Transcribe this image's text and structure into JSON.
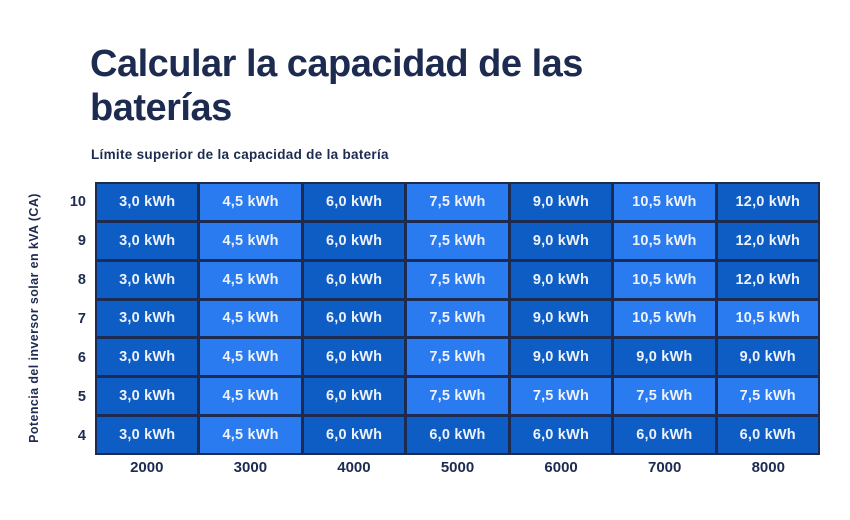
{
  "header": {
    "title_line1": "Calcular la capacidad de las",
    "title_line2": "baterías",
    "subtitle": "Límite superior de la capacidad de la batería"
  },
  "colors": {
    "background": "#ffffff",
    "navy": "#1d2b50",
    "cell_dark": "#0e5dc4",
    "cell_light": "#2a7af0",
    "cell_text": "#edf2fb"
  },
  "chart_data": {
    "type": "heatmap",
    "title": "Calcular la capacidad de las baterías",
    "subtitle": "Límite superior de la capacidad de la batería",
    "xlabel": "",
    "ylabel": "Potencia del inversor solar en kVA (CA)",
    "x_categories": [
      "2000",
      "3000",
      "4000",
      "5000",
      "6000",
      "7000",
      "8000"
    ],
    "y_categories": [
      "10",
      "9",
      "8",
      "7",
      "6",
      "5",
      "4"
    ],
    "unit": "kWh",
    "decimal_separator": ",",
    "value_format_example": "3,0 kWh",
    "series": [
      {
        "y": "10",
        "values": [
          3.0,
          4.5,
          6.0,
          7.5,
          9.0,
          10.5,
          12.0
        ]
      },
      {
        "y": "9",
        "values": [
          3.0,
          4.5,
          6.0,
          7.5,
          9.0,
          10.5,
          12.0
        ]
      },
      {
        "y": "8",
        "values": [
          3.0,
          4.5,
          6.0,
          7.5,
          9.0,
          10.5,
          12.0
        ]
      },
      {
        "y": "7",
        "values": [
          3.0,
          4.5,
          6.0,
          7.5,
          9.0,
          10.5,
          10.5
        ]
      },
      {
        "y": "6",
        "values": [
          3.0,
          4.5,
          6.0,
          7.5,
          9.0,
          9.0,
          9.0
        ]
      },
      {
        "y": "5",
        "values": [
          3.0,
          4.5,
          6.0,
          7.5,
          7.5,
          7.5,
          7.5
        ]
      },
      {
        "y": "4",
        "values": [
          3.0,
          4.5,
          6.0,
          6.0,
          6.0,
          6.0,
          6.0
        ]
      }
    ],
    "shade_by_value": {
      "3.0": "dark",
      "4.5": "light",
      "6.0": "dark",
      "7.5": "light",
      "9.0": "dark",
      "10.5": "light",
      "12.0": "dark"
    },
    "legend_position": "none"
  }
}
